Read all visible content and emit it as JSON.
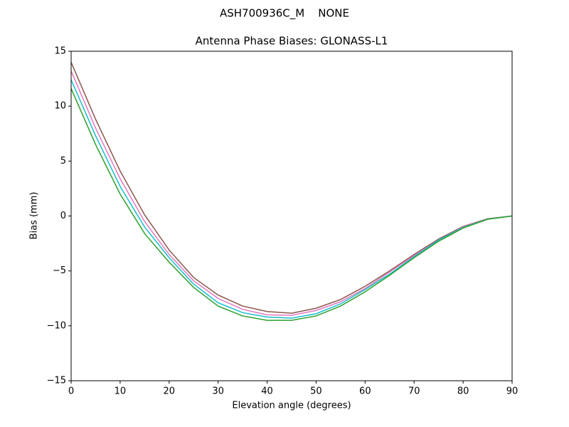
{
  "chart_data": {
    "type": "line",
    "suptitle": "ASH700936C_M    NONE",
    "title": "Antenna Phase Biases: GLONASS-L1",
    "x_label": "Elevation angle (degrees)",
    "y_label": "Bias (mm)",
    "x": [
      0,
      5,
      10,
      15,
      20,
      25,
      30,
      35,
      40,
      45,
      50,
      55,
      60,
      65,
      70,
      75,
      80,
      85,
      90
    ],
    "series": [
      {
        "color": "#8c564b",
        "values": [
          14,
          8.8,
          4.1,
          0.1,
          -3.1,
          -5.6,
          -7.2,
          -8.2,
          -8.7,
          -8.85,
          -8.4,
          -7.6,
          -6.4,
          -5.0,
          -3.5,
          -2.1,
          -0.95,
          -0.25,
          0
        ]
      },
      {
        "color": "#e377c2",
        "values": [
          13.2,
          8.0,
          3.4,
          -0.5,
          -3.5,
          -5.9,
          -7.5,
          -8.5,
          -9.0,
          -9.05,
          -8.6,
          -7.8,
          -6.6,
          -5.1,
          -3.6,
          -2.2,
          -1.0,
          -0.27,
          0
        ]
      },
      {
        "color": "#17becf",
        "values": [
          12.4,
          7.3,
          2.7,
          -1.0,
          -3.8,
          -6.2,
          -7.9,
          -8.8,
          -9.2,
          -9.3,
          -8.9,
          -8.0,
          -6.7,
          -5.3,
          -3.7,
          -2.2,
          -1.05,
          -0.28,
          0
        ]
      },
      {
        "color": "#2ca02c",
        "values": [
          11.6,
          6.5,
          2.0,
          -1.6,
          -4.2,
          -6.5,
          -8.2,
          -9.1,
          -9.5,
          -9.5,
          -9.1,
          -8.2,
          -6.9,
          -5.4,
          -3.8,
          -2.3,
          -1.1,
          -0.3,
          0
        ]
      }
    ],
    "xlim": [
      0,
      90
    ],
    "xticks": [
      0,
      10,
      20,
      30,
      40,
      50,
      60,
      70,
      80,
      90
    ],
    "ylim": [
      -15,
      15
    ],
    "yticks": [
      {
        "value": -15,
        "label": "−15"
      },
      {
        "value": -10,
        "label": "−10"
      },
      {
        "value": -5,
        "label": "−5"
      },
      0,
      5,
      10,
      15
    ],
    "grid": false
  }
}
